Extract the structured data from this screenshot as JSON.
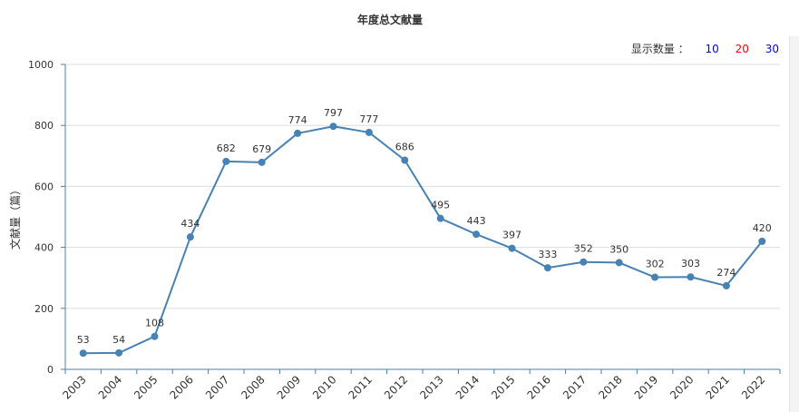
{
  "title": "年度总文献量",
  "display_count": {
    "label": "显示数量 ：",
    "options": [
      {
        "label": "10",
        "color": "#0000ff"
      },
      {
        "label": "20",
        "color": "#ff0000"
      },
      {
        "label": "30",
        "color": "#0000ff"
      }
    ]
  },
  "colors": {
    "line": "#4682b4",
    "axis": "#4682b4",
    "grid": "#dddddd",
    "text": "#333333"
  },
  "chart_data": {
    "type": "line",
    "title": "年度总文献量",
    "xlabel": "",
    "ylabel": "文献量（篇）",
    "ylim": [
      0,
      1000
    ],
    "yticks": [
      0,
      200,
      400,
      600,
      800,
      1000
    ],
    "grid": true,
    "categories": [
      "2003",
      "2004",
      "2005",
      "2006",
      "2007",
      "2008",
      "2009",
      "2010",
      "2011",
      "2012",
      "2013",
      "2014",
      "2015",
      "2016",
      "2017",
      "2018",
      "2019",
      "2020",
      "2021",
      "2022"
    ],
    "series": [
      {
        "values": [
          53,
          54,
          108,
          434,
          682,
          679,
          774,
          797,
          777,
          686,
          495,
          443,
          397,
          333,
          352,
          350,
          302,
          303,
          274,
          420
        ]
      }
    ]
  }
}
